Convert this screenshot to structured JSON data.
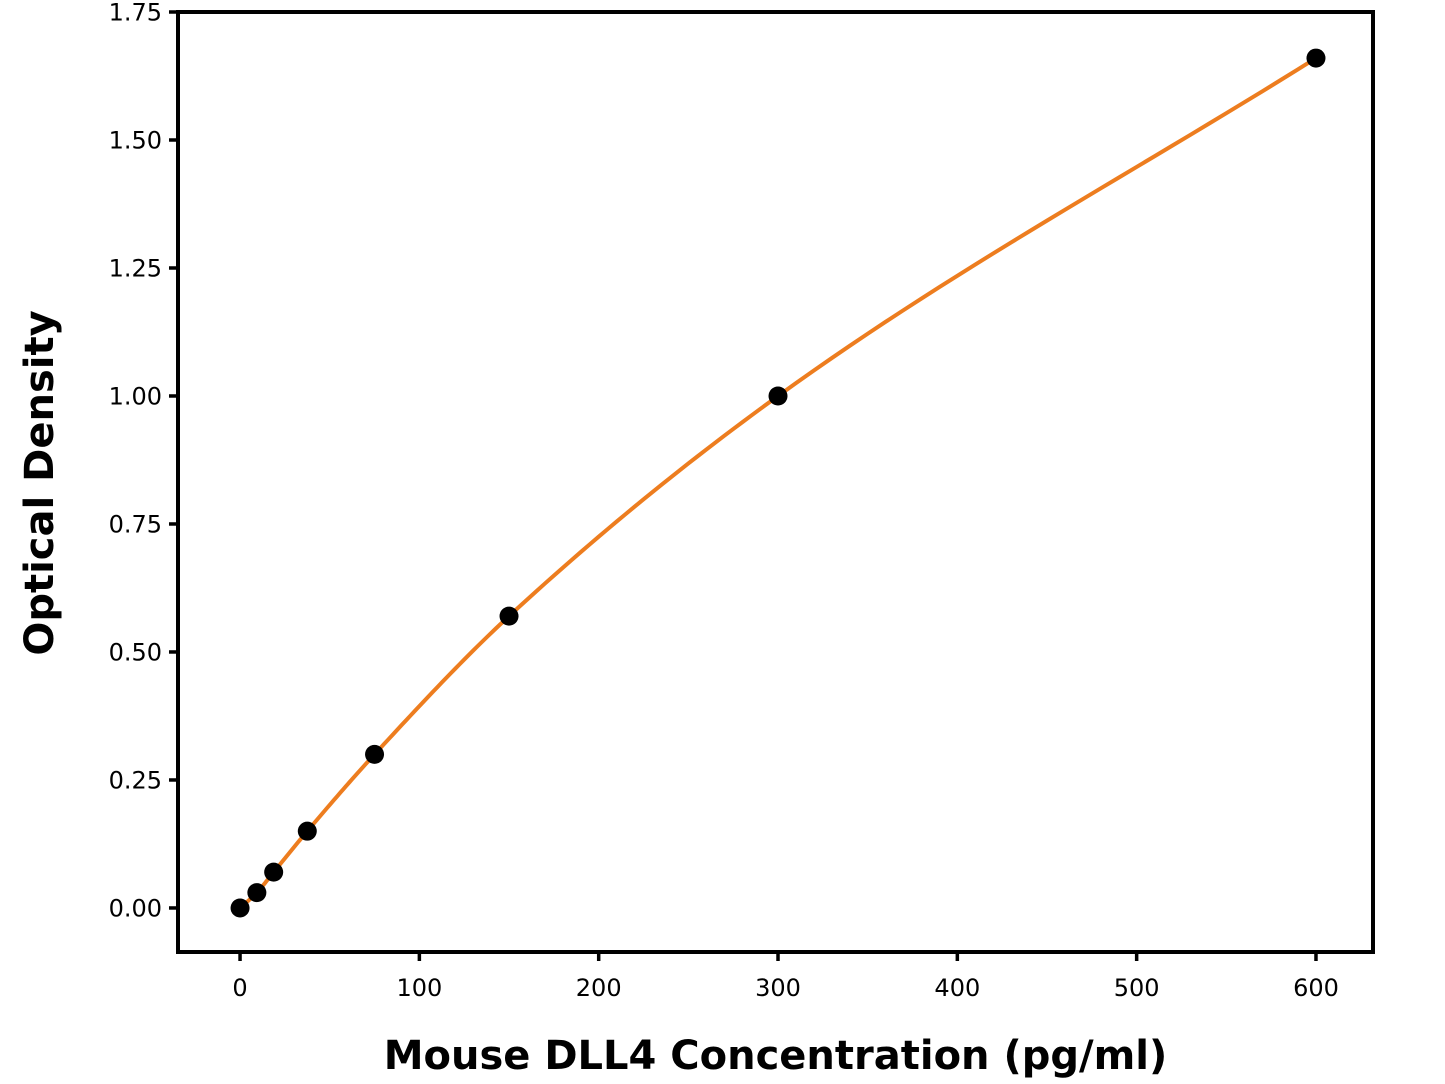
{
  "chart_data": {
    "type": "scatter",
    "title": "",
    "xlabel": "Mouse DLL4 Concentration (pg/ml)",
    "ylabel": "Optical Density",
    "points": [
      {
        "x": 0,
        "y": 0.0
      },
      {
        "x": 9.375,
        "y": 0.03
      },
      {
        "x": 18.75,
        "y": 0.07
      },
      {
        "x": 37.5,
        "y": 0.15
      },
      {
        "x": 75,
        "y": 0.3
      },
      {
        "x": 150,
        "y": 0.57
      },
      {
        "x": 300,
        "y": 1.0
      },
      {
        "x": 600,
        "y": 1.66
      }
    ],
    "x_ticks": [
      {
        "v": 0,
        "label": "0"
      },
      {
        "v": 100,
        "label": "100"
      },
      {
        "v": 200,
        "label": "200"
      },
      {
        "v": 300,
        "label": "300"
      },
      {
        "v": 400,
        "label": "400"
      },
      {
        "v": 500,
        "label": "500"
      },
      {
        "v": 600,
        "label": "600"
      }
    ],
    "y_ticks": [
      {
        "v": 0.0,
        "label": "0.00"
      },
      {
        "v": 0.25,
        "label": "0.25"
      },
      {
        "v": 0.5,
        "label": "0.50"
      },
      {
        "v": 0.75,
        "label": "0.75"
      },
      {
        "v": 1.0,
        "label": "1.00"
      },
      {
        "v": 1.25,
        "label": "1.25"
      },
      {
        "v": 1.5,
        "label": "1.50"
      },
      {
        "v": 1.75,
        "label": "1.75"
      }
    ],
    "xlim": [
      -34.6,
      631.8
    ],
    "ylim": [
      -0.086,
      1.75
    ],
    "grid": false,
    "legend": null,
    "curve_style": "smooth-fit-through-points",
    "marker": "circle",
    "colors": {
      "curve": "#ED7D1F",
      "marker": "#000000",
      "axis": "#000000",
      "tick_label": "#000000",
      "background": "#FFFFFF"
    }
  }
}
